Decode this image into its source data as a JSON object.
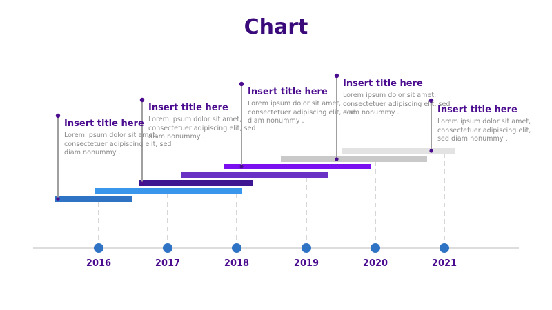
{
  "title": "Chart",
  "years": [
    "2016",
    "2017",
    "2018",
    "2019",
    "2020",
    "2021"
  ],
  "callouts": [
    {
      "title": "Insert title here",
      "body": "Lorem ipsum dolor sit amet, consectetuer adipiscing elit, sed diam nonummy ."
    },
    {
      "title": "Insert title here",
      "body": "Lorem ipsum dolor sit amet, consectetuer adipiscing elit, sed diam nonummy ."
    },
    {
      "title": "Insert title here",
      "body": "Lorem ipsum dolor sit amet, consectetuer adipiscing elit, sed diam nonummy ."
    },
    {
      "title": "Insert title here",
      "body": "Lorem ipsum dolor sit amet, consectetuer adipiscing elit, sed diam nonummy ."
    },
    {
      "title": "Insert title here",
      "body": "Lorem ipsum dolor sit amet, consectetuer adipiscing elit, sed diam nonummy ."
    }
  ],
  "colors": {
    "title": "#3a0a7a",
    "axis": "#dddddd",
    "year_dot": "#2f73c4",
    "pin": "#4b0c8f",
    "pin_line": "#a0a0a0",
    "bars": [
      "#2f73c4",
      "#3a96ea",
      "#3f1691",
      "#6a32c4",
      "#7a0ff0",
      "#c9c9c9",
      "#e3e3e3"
    ]
  }
}
